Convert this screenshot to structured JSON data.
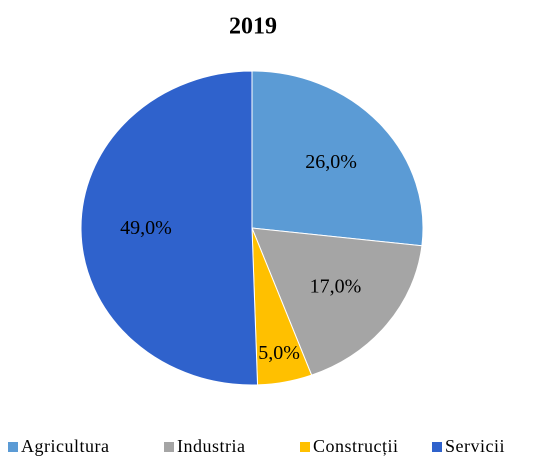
{
  "chart_data": {
    "type": "pie",
    "title": "2019",
    "categories": [
      "Agricultura",
      "Industria",
      "Construcții",
      "Servicii"
    ],
    "values": [
      26,
      17,
      5,
      49
    ],
    "value_labels": [
      "26,0%",
      "17,0%",
      "5,0%",
      "49,0%"
    ],
    "colors": [
      "#5b9bd5",
      "#a5a5a5",
      "#ffc000",
      "#2f62cc"
    ],
    "legend": "bottom"
  }
}
